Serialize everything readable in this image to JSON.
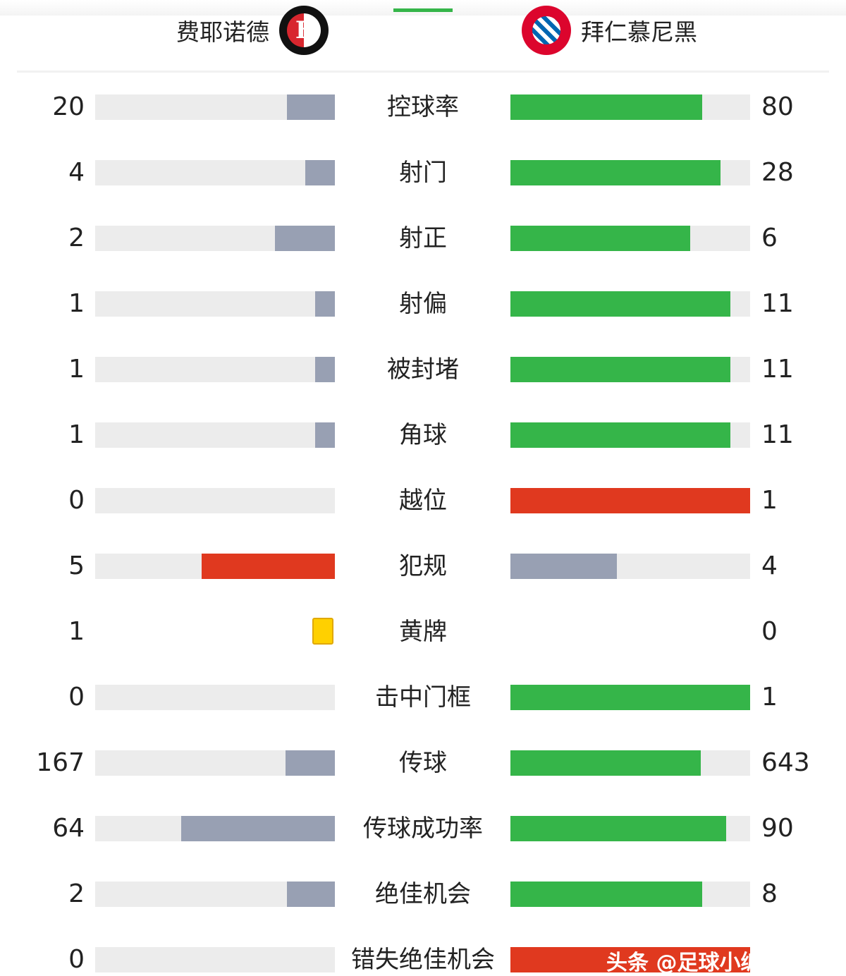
{
  "header": {
    "home_team": "费耶诺德",
    "away_team": "拜仁慕尼黑",
    "home_logo": "feyenoord-crest",
    "away_logo": "bayern-munich-crest"
  },
  "colors": {
    "green": "#35b549",
    "grey": "#98a0b3",
    "red": "#e0391f",
    "yellow": "#ffd000",
    "track": "#ececec"
  },
  "stats": [
    {
      "label": "控球率",
      "home": "20",
      "away": "80",
      "home_color": "grey",
      "away_color": "green"
    },
    {
      "label": "射门",
      "home": "4",
      "away": "28",
      "home_color": "grey",
      "away_color": "green"
    },
    {
      "label": "射正",
      "home": "2",
      "away": "6",
      "home_color": "grey",
      "away_color": "green"
    },
    {
      "label": "射偏",
      "home": "1",
      "away": "11",
      "home_color": "grey",
      "away_color": "green"
    },
    {
      "label": "被封堵",
      "home": "1",
      "away": "11",
      "home_color": "grey",
      "away_color": "green"
    },
    {
      "label": "角球",
      "home": "1",
      "away": "11",
      "home_color": "grey",
      "away_color": "green"
    },
    {
      "label": "越位",
      "home": "0",
      "away": "1",
      "home_color": "grey",
      "away_color": "red"
    },
    {
      "label": "犯规",
      "home": "5",
      "away": "4",
      "home_color": "red",
      "away_color": "grey"
    },
    {
      "label": "黄牌",
      "home": "1",
      "away": "0",
      "card": true
    },
    {
      "label": "击中门框",
      "home": "0",
      "away": "1",
      "home_color": "grey",
      "away_color": "green"
    },
    {
      "label": "传球",
      "home": "167",
      "away": "643",
      "home_color": "grey",
      "away_color": "green"
    },
    {
      "label": "传球成功率",
      "home": "64",
      "away": "90",
      "home_color": "grey",
      "away_color": "green",
      "scale": 100
    },
    {
      "label": "绝佳机会",
      "home": "2",
      "away": "8",
      "home_color": "grey",
      "away_color": "green"
    },
    {
      "label": "错失绝佳机会",
      "home": "0",
      "away": null,
      "home_color": "grey",
      "away_color": "red",
      "away_fill": 1
    }
  ],
  "watermark": "头条 @足球小编"
}
